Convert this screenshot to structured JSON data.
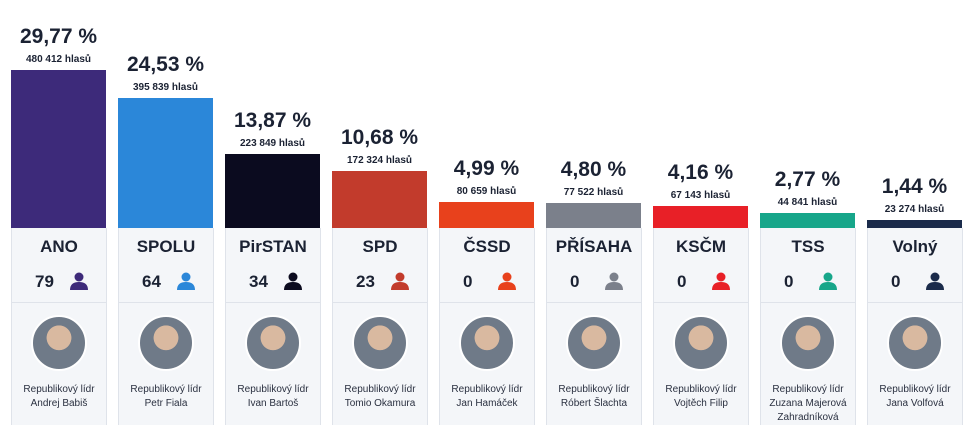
{
  "chart_data": {
    "type": "bar",
    "categories": [
      "ANO",
      "SPOLU",
      "PirSTAN",
      "SPD",
      "ČSSD",
      "PŘÍSAHA",
      "KSČM",
      "TSS",
      "Volný"
    ],
    "values": [
      29.77,
      24.53,
      13.87,
      10.68,
      4.99,
      4.8,
      4.16,
      2.77,
      1.44
    ],
    "value_labels": [
      "29,77 %",
      "24,53 %",
      "13,87 %",
      "10,68 %",
      "4,99 %",
      "4,80 %",
      "4,16 %",
      "2,77 %",
      "1,44 %"
    ],
    "vote_labels": [
      "480 412 hlasů",
      "395 839 hlasů",
      "223 849 hlasů",
      "172 324 hlasů",
      "80 659 hlasů",
      "77 522 hlasů",
      "67 143 hlasů",
      "44 841 hlasů",
      "23 274 hlasů"
    ],
    "colors": [
      "#3d2a7a",
      "#2b87d9",
      "#0b0b1f",
      "#c23b2c",
      "#e8411c",
      "#7b808b",
      "#e82027",
      "#17a68a",
      "#1b2b4b"
    ],
    "seats": [
      79,
      64,
      34,
      23,
      0,
      0,
      0,
      0,
      0
    ],
    "leader_role": "Republikový lídr",
    "leaders": [
      "Andrej Babiš",
      "Petr Fiala",
      "Ivan Bartoš",
      "Tomio Okamura",
      "Jan Hamáček",
      "Róbert Šlachta",
      "Vojtěch Filip",
      "Zuzana Majerová Zahradníková",
      "Jana Volfová"
    ]
  }
}
